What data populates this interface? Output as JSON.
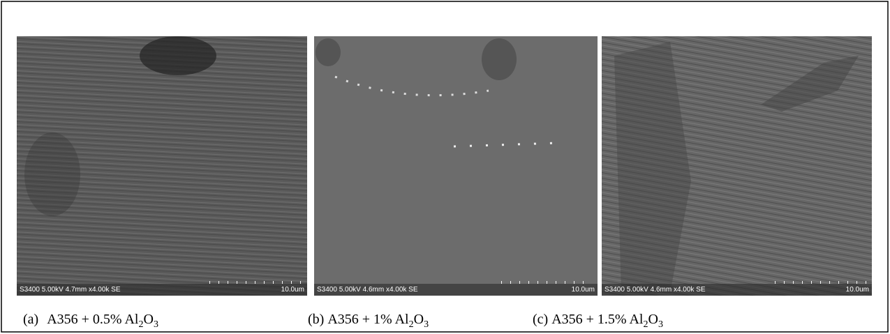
{
  "figure": {
    "panels": [
      {
        "footer": "S3400 5.00kV 4.7mm x4.00k SE",
        "scale": "10.0um",
        "caption": {
          "label": "(a)",
          "main": "A356 + 0.5% Al",
          "sub1": "2",
          "mid": "O",
          "sub2": "3"
        }
      },
      {
        "footer": "S3400 5.00kV 4.6mm x4.00k SE",
        "scale": "10.0um",
        "caption": {
          "label": "(b)",
          "main": "A356 + 1% Al",
          "sub1": "2",
          "mid": "O",
          "sub2": "3"
        }
      },
      {
        "footer": "S3400 5.00kV 4.6mm x4.00k SE",
        "scale": "10.0um",
        "caption": {
          "label": "(c)",
          "main": "A356 + 1.5% Al",
          "sub1": "2",
          "mid": "O",
          "sub2": "3"
        }
      }
    ]
  }
}
